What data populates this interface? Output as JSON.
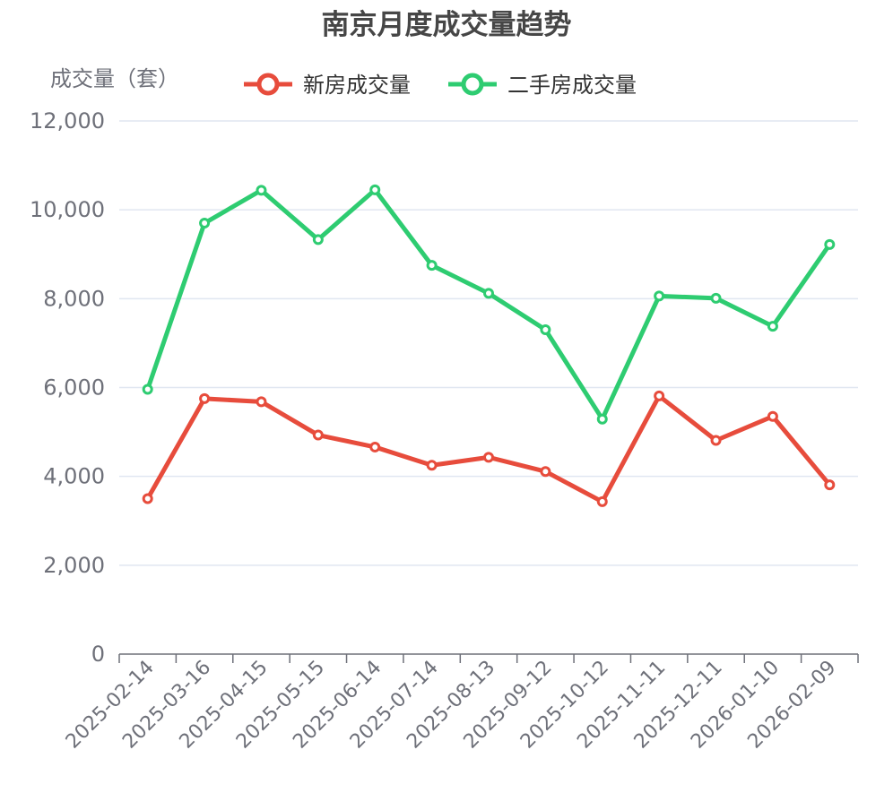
{
  "chart_data": {
    "type": "line",
    "title": "南京月度成交量趋势",
    "ylabel": "成交量（套）",
    "xlabel": "",
    "ylim": [
      0,
      12000
    ],
    "y_ticks": [
      0,
      2000,
      4000,
      6000,
      8000,
      10000,
      12000
    ],
    "y_tick_labels": [
      "0",
      "2,000",
      "4,000",
      "6,000",
      "8,000",
      "10,000",
      "12,000"
    ],
    "grid": true,
    "legend_position": "top",
    "x": [
      "2025-02-14",
      "2025-03-16",
      "2025-04-15",
      "2025-05-15",
      "2025-06-14",
      "2025-07-14",
      "2025-08-13",
      "2025-09-12",
      "2025-10-12",
      "2025-11-11",
      "2025-12-11",
      "2026-01-10",
      "2026-02-09"
    ],
    "series": [
      {
        "name": "新房成交量",
        "color": "#e74c3c",
        "values": [
          3500,
          5750,
          5680,
          4930,
          4660,
          4250,
          4430,
          4110,
          3430,
          5810,
          4810,
          5350,
          3810
        ]
      },
      {
        "name": "二手房成交量",
        "color": "#2ecc71",
        "values": [
          5960,
          9700,
          10440,
          9330,
          10450,
          8750,
          8120,
          7300,
          5290,
          8060,
          8010,
          7380,
          9220
        ]
      }
    ]
  }
}
